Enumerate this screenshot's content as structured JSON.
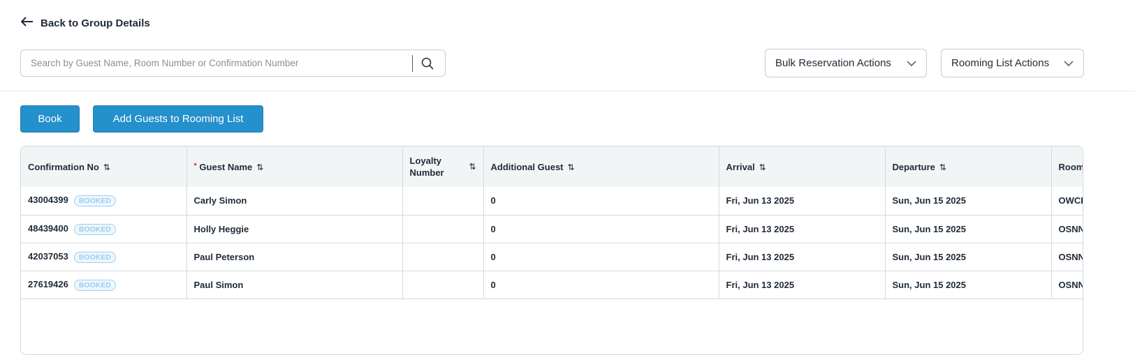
{
  "nav": {
    "back_label": "Back to Group Details"
  },
  "search": {
    "placeholder": "Search by Guest Name, Room Number or Confirmation Number",
    "value": ""
  },
  "actions": {
    "bulk": "Bulk Reservation Actions",
    "rooming": "Rooming List Actions",
    "book": "Book",
    "add_guests": "Add Guests to Rooming List"
  },
  "colors": {
    "primary": "#2490cc",
    "badge": "#9fcdf0"
  },
  "table": {
    "headers": {
      "confirmation": "Confirmation No",
      "guest": "Guest Name",
      "loyalty_1": "Loyalty",
      "loyalty_2": "Number",
      "additional": "Additional Guest",
      "arrival": "Arrival",
      "departure": "Departure",
      "room": "Room"
    },
    "rows": [
      {
        "confirmation": "43004399",
        "status": "BOOKED",
        "guest": "Carly Simon",
        "loyalty": "",
        "additional": "0",
        "arrival": "Fri, Jun 13 2025",
        "departure": "Sun, Jun 15 2025",
        "room": "OWCI"
      },
      {
        "confirmation": "48439400",
        "status": "BOOKED",
        "guest": "Holly Heggie",
        "loyalty": "",
        "additional": "0",
        "arrival": "Fri, Jun 13 2025",
        "departure": "Sun, Jun 15 2025",
        "room": "OSNN"
      },
      {
        "confirmation": "42037053",
        "status": "BOOKED",
        "guest": "Paul Peterson",
        "loyalty": "",
        "additional": "0",
        "arrival": "Fri, Jun 13 2025",
        "departure": "Sun, Jun 15 2025",
        "room": "OSNN"
      },
      {
        "confirmation": "27619426",
        "status": "BOOKED",
        "guest": "Paul Simon",
        "loyalty": "",
        "additional": "0",
        "arrival": "Fri, Jun 13 2025",
        "departure": "Sun, Jun 15 2025",
        "room": "OSNN"
      }
    ]
  }
}
